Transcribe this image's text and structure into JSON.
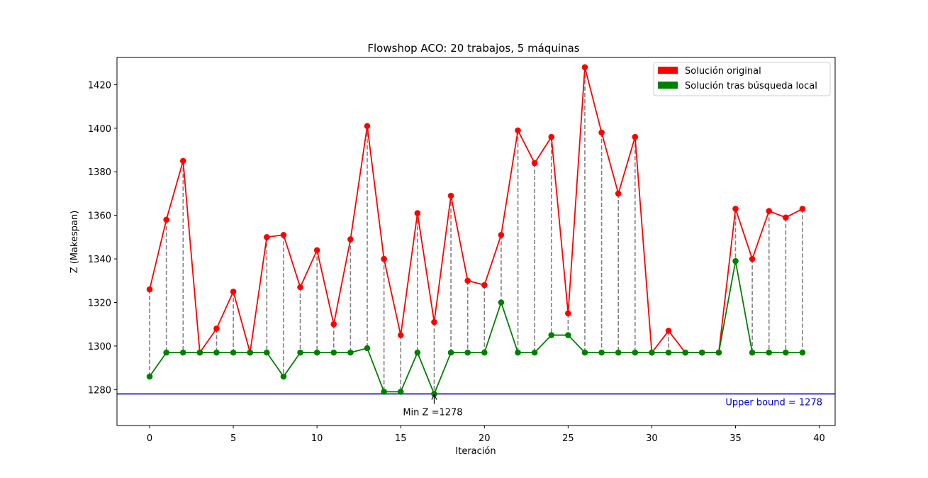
{
  "chart_data": {
    "type": "line",
    "title": "Flowshop ACO: 20 trabajos, 5 máquinas",
    "xlabel": "Iteración",
    "ylabel": "Z (Makespan)",
    "xlim": [
      -1.95,
      40.95
    ],
    "ylim": [
      1263.5,
      1432.5
    ],
    "xticks": [
      0,
      5,
      10,
      15,
      20,
      25,
      30,
      35,
      40
    ],
    "yticks": [
      1280,
      1300,
      1320,
      1340,
      1360,
      1380,
      1400,
      1420
    ],
    "x": [
      0,
      1,
      2,
      3,
      4,
      5,
      6,
      7,
      8,
      9,
      10,
      11,
      12,
      13,
      14,
      15,
      16,
      17,
      18,
      19,
      20,
      21,
      22,
      23,
      24,
      25,
      26,
      27,
      28,
      29,
      30,
      31,
      32,
      33,
      34,
      35,
      36,
      37,
      38,
      39
    ],
    "series": [
      {
        "name": "Solución original",
        "color": "#ff0000",
        "values": [
          1326,
          1358,
          1385,
          1297,
          1308,
          1325,
          1297,
          1350,
          1351,
          1327,
          1344,
          1310,
          1349,
          1401,
          1340,
          1305,
          1361,
          1311,
          1369,
          1330,
          1328,
          1351,
          1399,
          1384,
          1396,
          1315,
          1428,
          1398,
          1370,
          1396,
          1297,
          1307,
          1297,
          1297,
          1297,
          1363,
          1340,
          1362,
          1359,
          1363
        ]
      },
      {
        "name": "Solución tras búsqueda local",
        "color": "#008000",
        "values": [
          1286,
          1297,
          1297,
          1297,
          1297,
          1297,
          1297,
          1297,
          1286,
          1297,
          1297,
          1297,
          1297,
          1299,
          1279,
          1279,
          1297,
          1278,
          1297,
          1297,
          1297,
          1320,
          1297,
          1297,
          1305,
          1305,
          1297,
          1297,
          1297,
          1297,
          1297,
          1297,
          1297,
          1297,
          1297,
          1339,
          1297,
          1297,
          1297,
          1297
        ]
      }
    ],
    "connector_color": "#808080",
    "upper_bound": {
      "value": 1278,
      "label": "Upper bound = 1278",
      "color": "#0000cc"
    },
    "min_annotation": {
      "x": 17,
      "y": 1278,
      "label": "Min Z =1278"
    },
    "legend_position": "top-right",
    "grid": false
  }
}
